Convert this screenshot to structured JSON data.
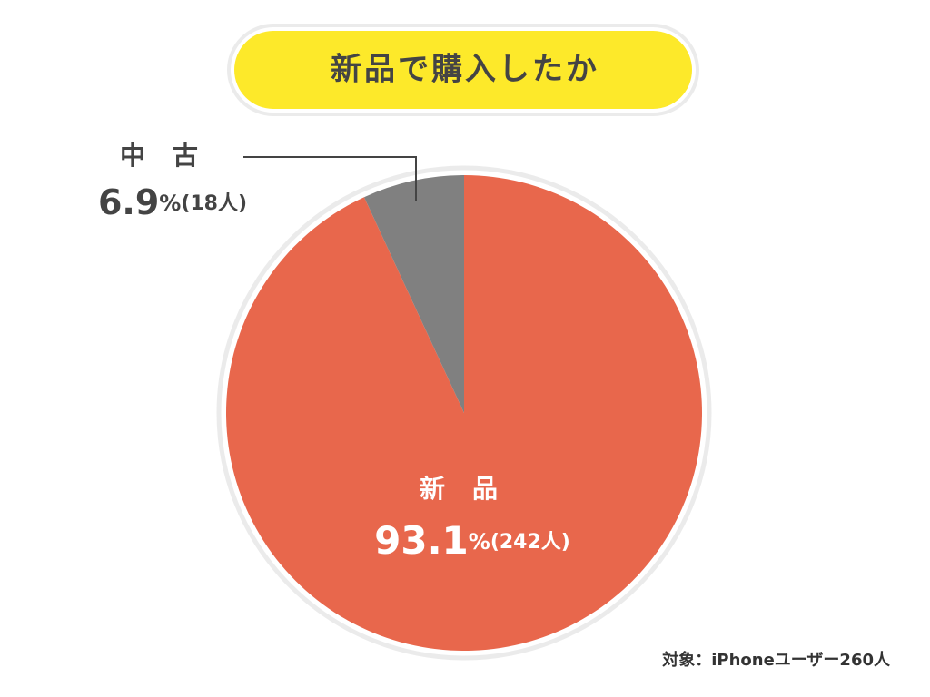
{
  "chart_data": {
    "type": "pie",
    "title": "新品で購入したか",
    "categories": [
      "新品",
      "中古"
    ],
    "values": [
      93.1,
      6.9
    ],
    "unit": "%",
    "counts": [
      242,
      18
    ],
    "count_labels": [
      "(242人)",
      "(18人)"
    ],
    "colors": [
      "#e8674c",
      "#808080"
    ],
    "note": "対象：iPhoneユーザー260人"
  }
}
